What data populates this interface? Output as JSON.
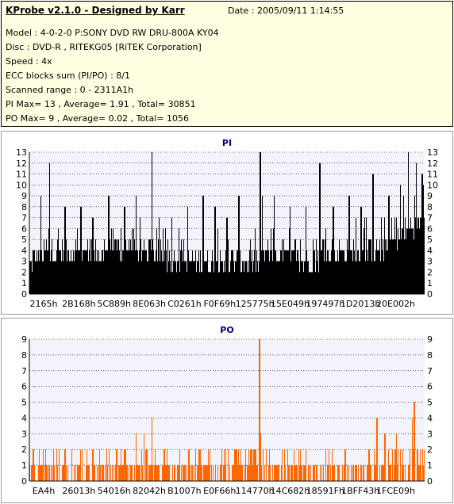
{
  "info": {
    "title": "KProbe v2.1.0 - Designed by Karr",
    "date": "Date : 2005/09/11 1:14:55",
    "lines": [
      "Model : 4-0-2-0 P:SONY    DVD RW DRU-800A  KY04",
      "Disc : DVD-R , RITEKG05 [RiTEK Corporation]",
      "Speed : 4x",
      "ECC blocks sum (PI/PO) : 8/1",
      "Scanned range : 0 - 2311A1h",
      "PI Max= 13 , Average= 1.91 , Total= 30851",
      "PO Max= 9 , Average= 0.02 , Total= 1056"
    ]
  },
  "colors": {
    "info_bg": "#ffffe1",
    "plot_bg": "#f3f3fc",
    "pi_bar": "#000000",
    "po_bar": "#ff6600",
    "title": "#000080",
    "grid": "#000000"
  },
  "chart_data": [
    {
      "type": "bar",
      "title": "PI",
      "ylim": [
        0,
        13
      ],
      "yticks": [
        0,
        1,
        2,
        3,
        4,
        5,
        6,
        7,
        8,
        9,
        10,
        11,
        12,
        13
      ],
      "xtick_labels": [
        "2165h",
        "2B168h",
        "5C889h",
        "8E063h",
        "C0261h",
        "F0F69h",
        "125775h",
        "15E049h",
        "197497h",
        "1D2013h",
        "20E002h"
      ],
      "grid": "dashed",
      "profile": {
        "base": [
          [
            0,
            3
          ],
          [
            0.04,
            4
          ],
          [
            0.1,
            4
          ],
          [
            0.2,
            4
          ],
          [
            0.3,
            4
          ],
          [
            0.4,
            3
          ],
          [
            0.5,
            3
          ],
          [
            0.58,
            3
          ],
          [
            0.6,
            4
          ],
          [
            0.7,
            3
          ],
          [
            0.8,
            4
          ],
          [
            0.88,
            4
          ],
          [
            0.92,
            5
          ],
          [
            0.96,
            6
          ],
          [
            1.0,
            7
          ]
        ],
        "peaks": [
          [
            0.028,
            9
          ],
          [
            0.05,
            12
          ],
          [
            0.09,
            8
          ],
          [
            0.13,
            8
          ],
          [
            0.16,
            7
          ],
          [
            0.2,
            9
          ],
          [
            0.24,
            8
          ],
          [
            0.27,
            9
          ],
          [
            0.31,
            13
          ],
          [
            0.36,
            7
          ],
          [
            0.4,
            8
          ],
          [
            0.44,
            9
          ],
          [
            0.47,
            8
          ],
          [
            0.5,
            7
          ],
          [
            0.53,
            9
          ],
          [
            0.585,
            13
          ],
          [
            0.59,
            9
          ],
          [
            0.62,
            9
          ],
          [
            0.66,
            8
          ],
          [
            0.7,
            8
          ],
          [
            0.735,
            12
          ],
          [
            0.77,
            8
          ],
          [
            0.81,
            9
          ],
          [
            0.84,
            8
          ],
          [
            0.87,
            11
          ],
          [
            0.91,
            9
          ],
          [
            0.94,
            10
          ],
          [
            0.96,
            13
          ],
          [
            0.98,
            12
          ],
          [
            0.995,
            11
          ]
        ]
      }
    },
    {
      "type": "bar",
      "title": "PO",
      "ylim": [
        0,
        9
      ],
      "yticks": [
        0,
        1,
        2,
        3,
        4,
        5,
        6,
        7,
        8,
        9
      ],
      "xtick_labels": [
        "EA4h",
        "26013h",
        "54016h",
        "82042h",
        "B1007h",
        "E0F66h",
        "114770h",
        "14C682h",
        "18591Fh",
        "1BFF43h",
        "1FCE09h"
      ],
      "grid": "dashed",
      "profile": {
        "base": [
          [
            0,
            1
          ],
          [
            1.0,
            1
          ]
        ],
        "peaks": [
          [
            0.01,
            2
          ],
          [
            0.04,
            2
          ],
          [
            0.09,
            2
          ],
          [
            0.16,
            2
          ],
          [
            0.22,
            2
          ],
          [
            0.24,
            2
          ],
          [
            0.27,
            3
          ],
          [
            0.29,
            3
          ],
          [
            0.31,
            4
          ],
          [
            0.34,
            2
          ],
          [
            0.38,
            2
          ],
          [
            0.43,
            2
          ],
          [
            0.52,
            2
          ],
          [
            0.56,
            2
          ],
          [
            0.582,
            9
          ],
          [
            0.586,
            3
          ],
          [
            0.6,
            2
          ],
          [
            0.64,
            2
          ],
          [
            0.7,
            2
          ],
          [
            0.75,
            2
          ],
          [
            0.8,
            2
          ],
          [
            0.86,
            2
          ],
          [
            0.88,
            4
          ],
          [
            0.9,
            3
          ],
          [
            0.93,
            3
          ],
          [
            0.97,
            4
          ],
          [
            0.975,
            5
          ],
          [
            0.99,
            2
          ]
        ]
      }
    }
  ]
}
